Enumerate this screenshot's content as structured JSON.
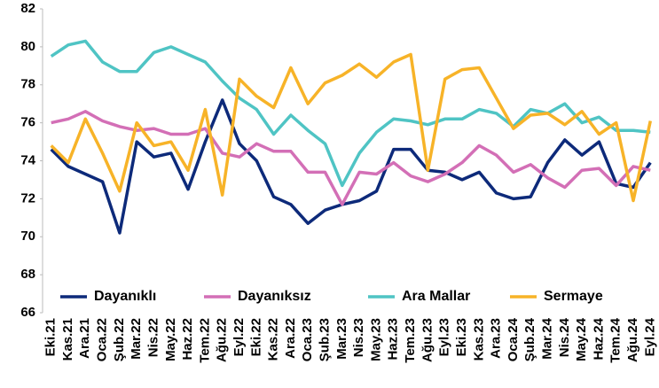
{
  "chart_data": {
    "type": "line",
    "categories": [
      "Eki.21",
      "Kas.21",
      "Ara.21",
      "Oca.22",
      "Şub.22",
      "Mar.22",
      "Nis.22",
      "May.22",
      "Haz.22",
      "Tem.22",
      "Ağu.22",
      "Eyl.22",
      "Eki.22",
      "Kas.22",
      "Ara.22",
      "Oca.23",
      "Şub.23",
      "Mar.23",
      "Nis.23",
      "May.23",
      "Haz.23",
      "Tem.23",
      "Ağu.23",
      "Eyl.23",
      "Eki.23",
      "Kas.23",
      "Ara.23",
      "Oca.24",
      "Şub.24",
      "Mar.24",
      "Nis.24",
      "May.24",
      "Haz.24",
      "Tem.24",
      "Ağu.24",
      "Eyl.24"
    ],
    "series": [
      {
        "name": "Dayanıklı",
        "color": "#0d2a7a",
        "values": [
          74.6,
          73.7,
          73.3,
          72.9,
          70.2,
          75.0,
          74.2,
          74.4,
          72.5,
          75.0,
          77.2,
          74.9,
          74.0,
          72.1,
          71.7,
          70.7,
          71.4,
          71.7,
          71.9,
          72.4,
          74.6,
          74.6,
          73.5,
          73.4,
          73.0,
          73.4,
          72.3,
          72.0,
          72.1,
          73.9,
          75.1,
          74.3,
          75.0,
          72.8,
          72.6,
          73.9
        ]
      },
      {
        "name": "Dayanıksız",
        "color": "#d36fb6",
        "values": [
          76.0,
          76.2,
          76.6,
          76.1,
          75.8,
          75.6,
          75.7,
          75.4,
          75.4,
          75.7,
          74.4,
          74.2,
          74.9,
          74.5,
          74.5,
          73.4,
          73.4,
          71.7,
          73.4,
          73.3,
          73.9,
          73.2,
          72.9,
          73.3,
          73.9,
          74.8,
          74.3,
          73.4,
          73.8,
          73.1,
          72.6,
          73.5,
          73.6,
          72.7,
          73.7,
          73.5
        ]
      },
      {
        "name": "Ara Mallar",
        "color": "#4fc4c4",
        "values": [
          79.5,
          80.1,
          80.3,
          79.2,
          78.7,
          78.7,
          79.7,
          80.0,
          79.6,
          79.2,
          78.2,
          77.3,
          76.7,
          75.4,
          76.4,
          75.6,
          74.9,
          72.7,
          74.4,
          75.5,
          76.2,
          76.1,
          75.9,
          76.2,
          76.2,
          76.7,
          76.5,
          75.8,
          76.7,
          76.5,
          77.0,
          76.0,
          76.3,
          75.6,
          75.6,
          75.5
        ]
      },
      {
        "name": "Sermaye",
        "color": "#f7b328",
        "values": [
          74.8,
          73.9,
          76.2,
          74.4,
          72.4,
          76.0,
          74.8,
          75.0,
          73.5,
          76.7,
          72.2,
          78.3,
          77.4,
          76.8,
          78.9,
          77.0,
          78.1,
          78.5,
          79.1,
          78.4,
          79.2,
          79.6,
          73.5,
          78.3,
          78.8,
          78.9,
          77.3,
          75.7,
          76.4,
          76.5,
          75.9,
          76.6,
          75.4,
          76.0,
          71.9,
          76.1
        ]
      }
    ],
    "ylim": [
      66,
      82
    ],
    "yticks": [
      66,
      68,
      70,
      72,
      74,
      76,
      78,
      80,
      82
    ],
    "grid": false,
    "legend": "bottom"
  }
}
